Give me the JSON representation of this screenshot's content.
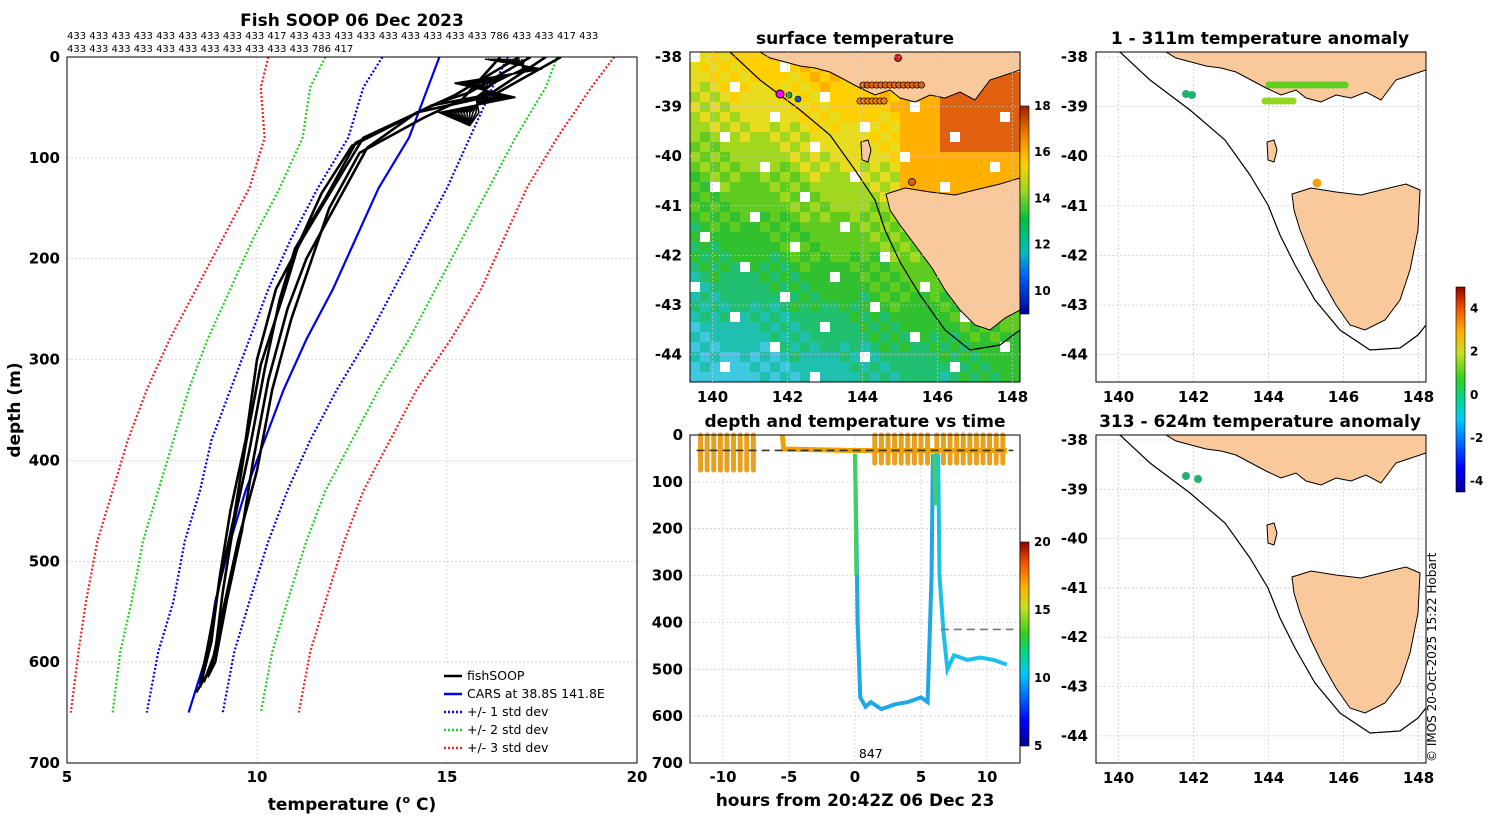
{
  "chart_data": [
    {
      "id": "profile",
      "type": "line",
      "title": "Fish SOOP 06 Dec 2023",
      "header_row1": "433 433 433 433 433 433 433 433 433 417 433 433 433 433 433 433 433 433 433 786 433 433 417 433",
      "header_row2": "433 433 433 433 433 433 433 433 433 433 433 786 417",
      "xlabel": "temperature (° C)",
      "xlabel_main": "temperature (",
      "xlabel_sup": "o",
      "xlabel_end": " C)",
      "ylabel": "depth (m)",
      "xlim": [
        5,
        20
      ],
      "ylim": [
        0,
        700
      ],
      "xticks": [
        "5",
        "10",
        "15",
        "20"
      ],
      "yticks": [
        "0",
        "100",
        "200",
        "300",
        "400",
        "500",
        "600",
        "700"
      ],
      "legend": [
        {
          "label": "fishSOOP",
          "color": "#000000",
          "style": "solid"
        },
        {
          "label": "CARS at 38.8S 141.8E",
          "color": "#0000ee",
          "style": "solid"
        },
        {
          "label": "+/- 1 std dev",
          "color": "#0000ee",
          "style": "dotted"
        },
        {
          "label": "+/- 2 std dev",
          "color": "#22cc22",
          "style": "dotted"
        },
        {
          "label": "+/- 3 std dev",
          "color": "#ee2222",
          "style": "dotted"
        }
      ],
      "series": [
        {
          "name": "CARS mean",
          "color": "#0000ee",
          "style": "solid",
          "temps": [
            14.8,
            14.5,
            14.0,
            13.2,
            12.6,
            12.0,
            11.3,
            10.7,
            10.2,
            9.7,
            9.3,
            8.9,
            8.7,
            8.2
          ],
          "depths": [
            0,
            30,
            80,
            130,
            180,
            230,
            280,
            330,
            380,
            430,
            480,
            540,
            590,
            650
          ]
        },
        {
          "name": "+1 std",
          "color": "#0000ee",
          "style": "dotted",
          "temps": [
            16.6,
            16.2,
            15.6,
            15.0,
            14.3,
            13.6,
            12.9,
            12.1,
            11.4,
            10.8,
            10.3,
            9.8,
            9.4,
            9.1
          ],
          "depths": [
            0,
            30,
            80,
            130,
            180,
            230,
            280,
            330,
            380,
            430,
            480,
            540,
            590,
            650
          ]
        },
        {
          "name": "-1 std",
          "color": "#0000ee",
          "style": "dotted",
          "temps": [
            13.3,
            12.8,
            12.4,
            11.6,
            10.9,
            10.3,
            9.8,
            9.3,
            8.8,
            8.5,
            8.1,
            7.8,
            7.4,
            7.1
          ],
          "depths": [
            0,
            30,
            80,
            130,
            180,
            230,
            280,
            330,
            380,
            430,
            480,
            540,
            590,
            650
          ]
        },
        {
          "name": "+2 std",
          "color": "#22cc22",
          "style": "dotted",
          "temps": [
            17.9,
            17.6,
            16.8,
            16.1,
            15.4,
            14.7,
            14.0,
            13.2,
            12.5,
            11.8,
            11.3,
            10.8,
            10.4,
            10.1
          ],
          "depths": [
            0,
            30,
            80,
            130,
            180,
            230,
            280,
            330,
            380,
            430,
            480,
            540,
            590,
            650
          ]
        },
        {
          "name": "-2 std",
          "color": "#22cc22",
          "style": "dotted",
          "temps": [
            11.8,
            11.4,
            11.2,
            10.6,
            9.9,
            9.3,
            8.7,
            8.2,
            7.8,
            7.4,
            7.0,
            6.7,
            6.4,
            6.2
          ],
          "depths": [
            0,
            30,
            80,
            130,
            180,
            230,
            280,
            330,
            380,
            430,
            480,
            540,
            590,
            650
          ]
        },
        {
          "name": "+3 std",
          "color": "#ee2222",
          "style": "dotted",
          "temps": [
            19.4,
            18.8,
            17.9,
            17.1,
            16.5,
            15.9,
            15.1,
            14.2,
            13.5,
            12.8,
            12.3,
            11.8,
            11.4,
            11.1
          ],
          "depths": [
            0,
            30,
            80,
            130,
            180,
            230,
            280,
            330,
            380,
            430,
            480,
            540,
            590,
            650
          ]
        },
        {
          "name": "-3 std",
          "color": "#ee2222",
          "style": "dotted",
          "temps": [
            10.3,
            10.1,
            10.2,
            9.8,
            9.1,
            8.4,
            7.7,
            7.1,
            6.6,
            6.2,
            5.8,
            5.5,
            5.3,
            5.1
          ],
          "depths": [
            0,
            30,
            80,
            130,
            180,
            230,
            280,
            330,
            380,
            430,
            480,
            540,
            590,
            650
          ]
        },
        {
          "name": "fishSOOP 1",
          "color": "#000000",
          "style": "solid",
          "temps": [
            17.2,
            15.6,
            14.8,
            12.8,
            12.0,
            11.2,
            10.5,
            10.0,
            9.7,
            9.3,
            9.0,
            8.8,
            8.5
          ],
          "depths": [
            0,
            35,
            45,
            80,
            130,
            180,
            230,
            300,
            380,
            450,
            520,
            580,
            625
          ]
        },
        {
          "name": "fishSOOP 2",
          "color": "#000000",
          "style": "solid",
          "temps": [
            16.9,
            15.2,
            14.5,
            12.6,
            11.8,
            11.0,
            10.6,
            10.2,
            9.8,
            9.4,
            9.1,
            8.9,
            8.6
          ],
          "depths": [
            0,
            38,
            50,
            85,
            140,
            190,
            240,
            310,
            390,
            460,
            530,
            590,
            620
          ]
        },
        {
          "name": "fishSOOP 3",
          "color": "#000000",
          "style": "solid",
          "temps": [
            17.6,
            16.0,
            14.2,
            12.9,
            12.1,
            11.3,
            10.8,
            10.3,
            9.9,
            9.6,
            9.2,
            8.9,
            8.7
          ],
          "depths": [
            0,
            40,
            55,
            90,
            145,
            200,
            250,
            320,
            400,
            470,
            540,
            600,
            615
          ]
        },
        {
          "name": "fishSOOP 4",
          "color": "#000000",
          "style": "solid",
          "temps": [
            16.4,
            15.4,
            14.4,
            12.7,
            11.9,
            11.4,
            10.9,
            10.4,
            10.0,
            9.5,
            9.1,
            8.8,
            8.4
          ],
          "depths": [
            0,
            42,
            60,
            95,
            150,
            205,
            260,
            330,
            410,
            480,
            550,
            605,
            630
          ]
        },
        {
          "name": "fishSOOP 5",
          "color": "#000000",
          "style": "solid",
          "temps": [
            18.0,
            16.3,
            14.6,
            12.5,
            11.7,
            11.1,
            10.7,
            10.1,
            9.7,
            9.4,
            9.0,
            8.7,
            8.5
          ],
          "depths": [
            0,
            36,
            48,
            88,
            135,
            185,
            235,
            305,
            385,
            455,
            525,
            585,
            622
          ]
        }
      ]
    },
    {
      "id": "sst",
      "type": "heatmap",
      "title": "surface temperature",
      "xlim": [
        139.4,
        148.2
      ],
      "ylim": [
        -44.55,
        -37.9
      ],
      "xticks": [
        "140",
        "142",
        "144",
        "146",
        "148"
      ],
      "yticks": [
        "-38",
        "-39",
        "-40",
        "-41",
        "-42",
        "-43",
        "-44"
      ],
      "colorbar_ticks": [
        "10",
        "12",
        "14",
        "16",
        "18"
      ],
      "colorbar_range": [
        9,
        18
      ]
    },
    {
      "id": "depth_time",
      "type": "scatter",
      "title": "depth and temperature vs time",
      "xlabel": "hours from 20:42Z 06 Dec 23",
      "xlim": [
        -12.5,
        12.5
      ],
      "ylim": [
        0,
        700
      ],
      "xticks": [
        "-10",
        "-5",
        "0",
        "5",
        "10"
      ],
      "yticks": [
        "0",
        "100",
        "200",
        "300",
        "400",
        "500",
        "600",
        "700"
      ],
      "colorbar_ticks": [
        "5",
        "10",
        "15",
        "20"
      ],
      "colorbar_range": [
        5,
        20
      ],
      "annotation": "847",
      "annotation_x": 1.2,
      "ref_line_depth": 33,
      "ref_line2_depth": 415,
      "ref_line2_start": 6.5
    },
    {
      "id": "anomaly_shallow",
      "type": "scatter",
      "title": "1 - 311m temperature anomaly",
      "xlim": [
        139.4,
        148.2
      ],
      "ylim": [
        -44.55,
        -37.9
      ],
      "xticks": [
        "140",
        "142",
        "144",
        "146",
        "148"
      ],
      "yticks": [
        "-38",
        "-39",
        "-40",
        "-41",
        "-42",
        "-43",
        "-44"
      ]
    },
    {
      "id": "anomaly_deep",
      "type": "scatter",
      "title": "313 - 624m temperature anomaly",
      "xlim": [
        139.4,
        148.2
      ],
      "ylim": [
        -44.55,
        -37.9
      ],
      "xticks": [
        "140",
        "142",
        "144",
        "146",
        "148"
      ],
      "yticks": [
        "-38",
        "-39",
        "-40",
        "-41",
        "-42",
        "-43",
        "-44"
      ]
    },
    {
      "id": "anomaly_colorbar",
      "type": "colorbar",
      "ticks": [
        "4",
        "2",
        "0",
        "-2",
        "-4"
      ],
      "range": [
        -4.5,
        5
      ]
    }
  ],
  "copyright": "© IMOS 20-Oct-2025 15:22 Hobart",
  "colors": {
    "land": "#f9c89b",
    "cars": "#0000ee",
    "std2": "#22cc22",
    "std3": "#ee2222",
    "deep_track": "#1ea8e8",
    "shallow_track": "#e88a1a"
  }
}
